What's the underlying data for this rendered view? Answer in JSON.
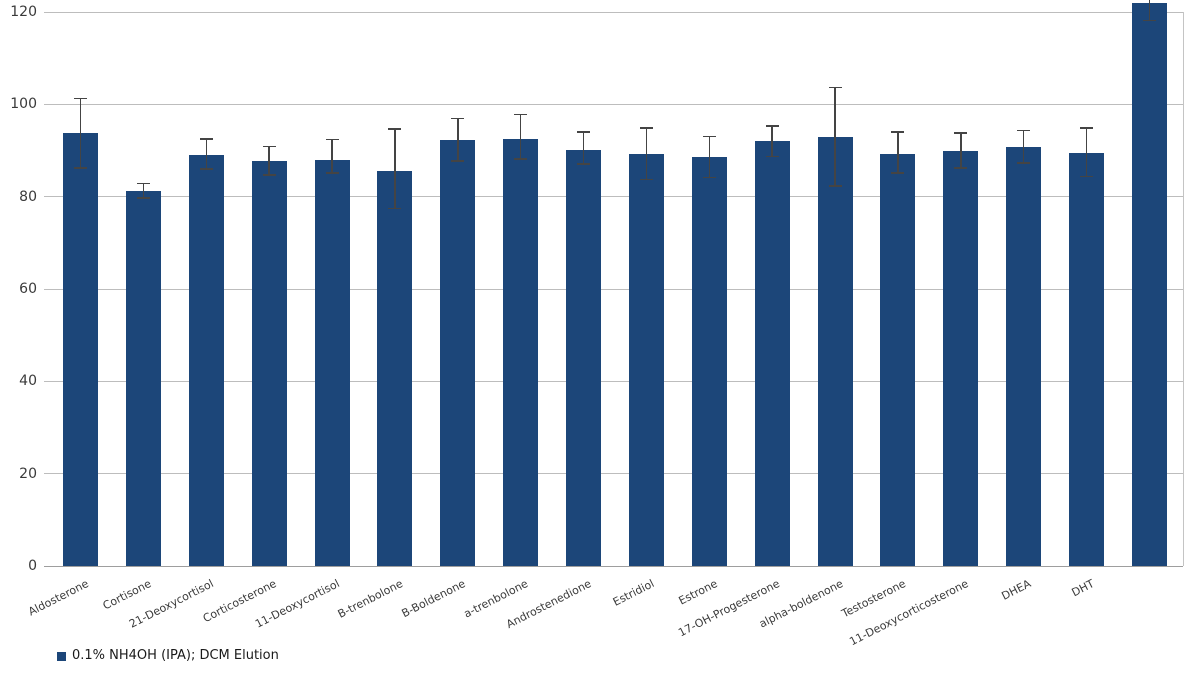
{
  "chart_data": {
    "type": "bar",
    "title": "",
    "xlabel": "",
    "ylabel": "",
    "ylim": [
      0,
      120
    ],
    "yticks": [
      0,
      20,
      40,
      60,
      80,
      100,
      120
    ],
    "grid": true,
    "legend_position": "bottom-left",
    "categories": [
      "Aldosterone",
      "Cortisone",
      "21-Deoxycortisol",
      "Corticosterone",
      "11-Deoxycortisol",
      "B-trenbolone",
      "B-Boldenone",
      "a-trenbolone",
      "Androstenedione",
      "Estridiol",
      "Estrone",
      "17-OH-Progesterone",
      "alpha-boldenone",
      "Testosterone",
      "11-Deoxycorticosterone",
      "DHEA",
      "DHT",
      ""
    ],
    "series": [
      {
        "name": "0.1% NH4OH (IPA); DCM Elution",
        "values": [
          93.8,
          81.3,
          89.0,
          87.8,
          88.0,
          85.6,
          92.3,
          92.5,
          90.2,
          89.2,
          88.6,
          92.0,
          93.0,
          89.2,
          90.0,
          90.8,
          89.4,
          122.0
        ],
        "error_low": [
          86.0,
          79.5,
          85.8,
          84.5,
          85.0,
          77.3,
          87.6,
          88.0,
          86.9,
          83.6,
          84.0,
          88.5,
          82.1,
          85.0,
          86.0,
          87.1,
          84.2,
          118.0
        ],
        "error_high": [
          101.4,
          83.0,
          92.7,
          91.0,
          92.5,
          94.8,
          97.1,
          98.0,
          94.2,
          95.0,
          93.2,
          95.5,
          103.8,
          94.2,
          94.0,
          94.5,
          95.0,
          126.0
        ]
      }
    ]
  },
  "legend": {
    "label": "0.1% NH4OH (IPA); DCM Elution"
  },
  "colors": {
    "bar": "#1C4679",
    "grid": "#BDBDBD",
    "baseline": "#9E9E9E",
    "error": "#444444",
    "text": "#3A3A3A"
  }
}
